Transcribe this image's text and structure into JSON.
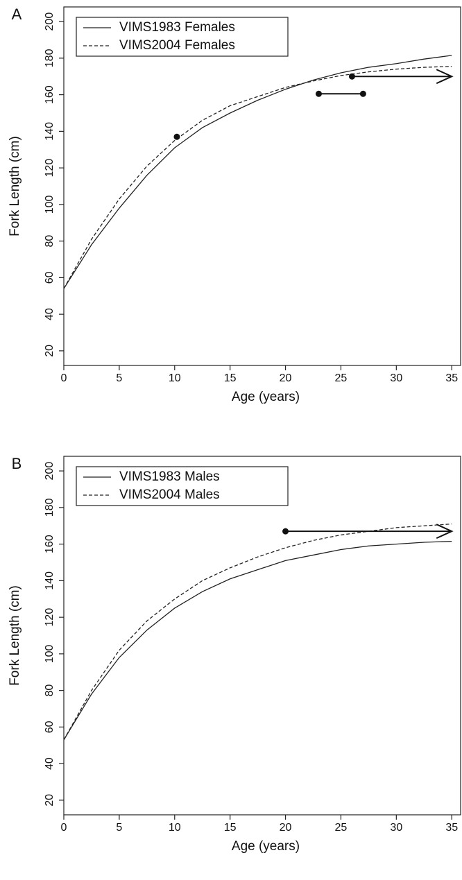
{
  "chart_data": [
    {
      "type": "line",
      "panel_label": "A",
      "xlabel": "Age (years)",
      "ylabel": "Fork Length (cm)",
      "x": [
        0,
        2.5,
        5,
        7.5,
        10,
        12.5,
        15,
        17.5,
        20,
        22.5,
        25,
        27.5,
        30,
        32.5,
        35
      ],
      "series": [
        {
          "name": "VIMS1983 Females",
          "color": "#222222",
          "dash": "solid",
          "values": [
            54,
            78,
            98,
            116,
            131,
            142,
            150,
            157,
            163,
            168,
            172,
            175,
            177,
            179.5,
            181.5
          ]
        },
        {
          "name": "VIMS2004 Females",
          "color": "#222222",
          "dash": "dashed",
          "values": [
            54,
            81,
            103,
            121,
            135,
            146,
            154,
            159,
            164,
            167.5,
            170.5,
            172.5,
            174,
            175,
            175.5
          ]
        }
      ],
      "points": [
        {
          "x": 10.2,
          "y": 137
        }
      ],
      "intervals": [
        {
          "x": [
            23,
            27
          ],
          "y": 160.5
        }
      ],
      "arrows": [
        {
          "x": [
            26,
            35
          ],
          "y": 170
        }
      ],
      "xlim": [
        0,
        35.8
      ],
      "ylim": [
        12,
        208
      ],
      "xticks": [
        0,
        5,
        10,
        15,
        20,
        25,
        30,
        35
      ],
      "yticks": [
        20,
        40,
        60,
        80,
        100,
        120,
        140,
        160,
        180,
        200
      ],
      "legend": "top-left"
    },
    {
      "type": "line",
      "panel_label": "B",
      "xlabel": "Age (years)",
      "ylabel": "Fork Length (cm)",
      "x": [
        0,
        2.5,
        5,
        7.5,
        10,
        12.5,
        15,
        17.5,
        20,
        22.5,
        25,
        27.5,
        30,
        32.5,
        35
      ],
      "series": [
        {
          "name": "VIMS1983 Males",
          "color": "#222222",
          "dash": "solid",
          "values": [
            53,
            78,
            98,
            113,
            125,
            134,
            141,
            146,
            151,
            154,
            157,
            159,
            160,
            161,
            161.5
          ]
        },
        {
          "name": "VIMS2004 Males",
          "color": "#222222",
          "dash": "dashed",
          "values": [
            53,
            80,
            102,
            118,
            130,
            140,
            147,
            153,
            158,
            162,
            165,
            167,
            169,
            170,
            171
          ]
        }
      ],
      "points": [],
      "intervals": [],
      "arrows": [
        {
          "x": [
            20,
            35
          ],
          "y": 167
        }
      ],
      "xlim": [
        0,
        35.8
      ],
      "ylim": [
        12,
        208
      ],
      "xticks": [
        0,
        5,
        10,
        15,
        20,
        25,
        30,
        35
      ],
      "yticks": [
        20,
        40,
        60,
        80,
        100,
        120,
        140,
        160,
        180,
        200
      ],
      "legend": "top-left"
    }
  ]
}
